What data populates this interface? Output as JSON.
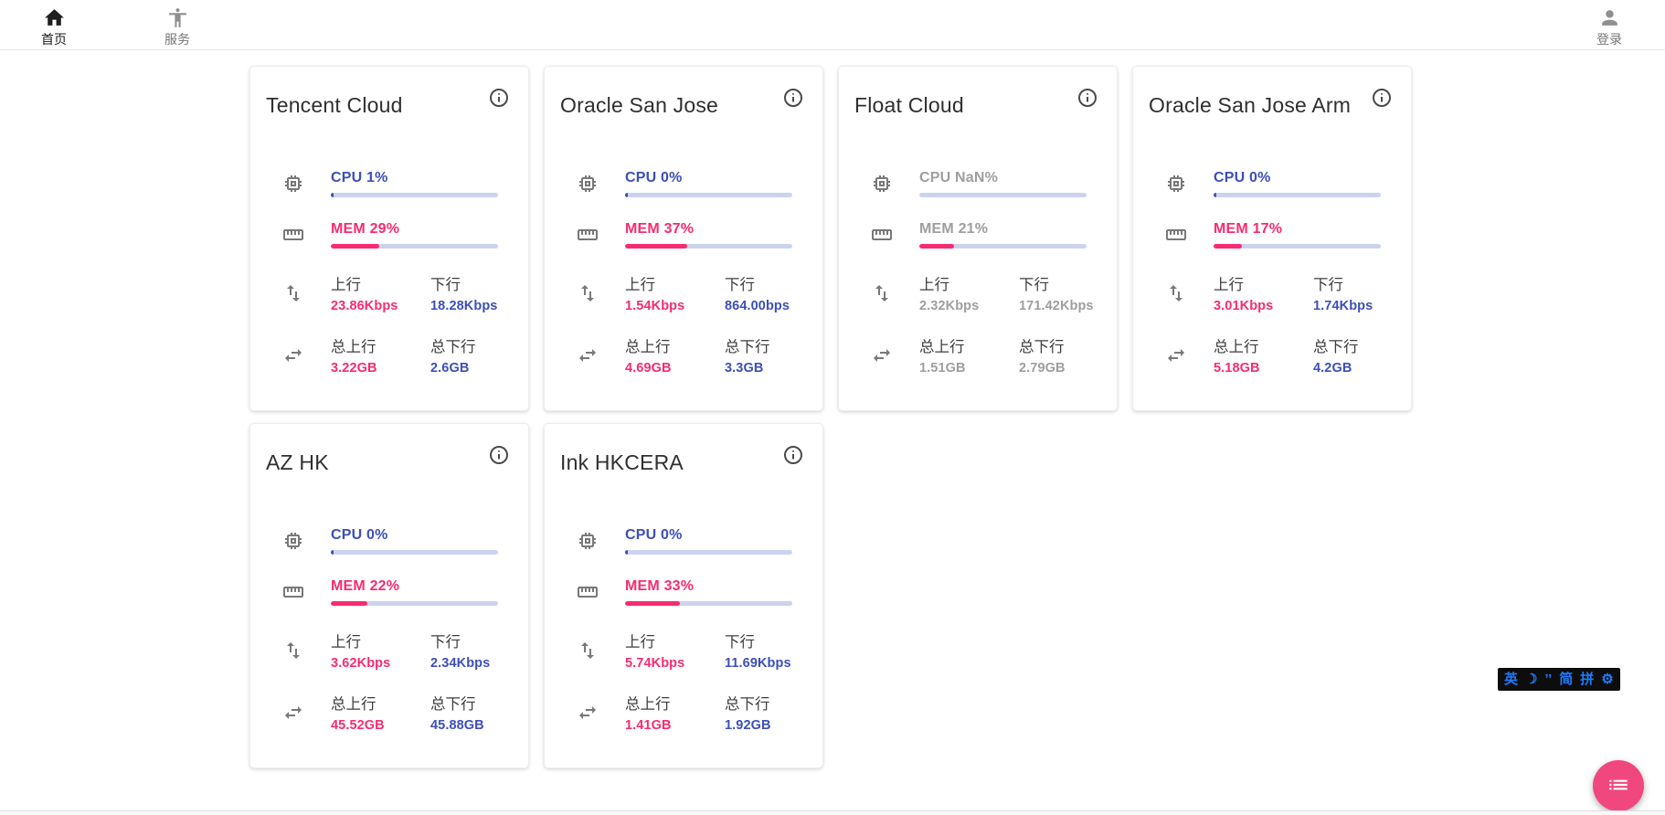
{
  "nav": {
    "home_label": "首页",
    "services_label": "服务",
    "login_label": "登录"
  },
  "card_labels": {
    "up": "上行",
    "down": "下行",
    "total_up": "总上行",
    "total_down": "总下行"
  },
  "servers": [
    {
      "name": "Tencent Cloud",
      "cpu_label": "CPU 1%",
      "cpu_pct": 1,
      "cpu_nan": false,
      "mem_label": "MEM 29%",
      "mem_pct": 29,
      "muted": false,
      "up": "23.86Kbps",
      "down": "18.28Kbps",
      "total_up": "3.22GB",
      "total_down": "2.6GB"
    },
    {
      "name": "Oracle San Jose",
      "cpu_label": "CPU 0%",
      "cpu_pct": 0,
      "cpu_nan": false,
      "mem_label": "MEM 37%",
      "mem_pct": 37,
      "muted": false,
      "up": "1.54Kbps",
      "down": "864.00bps",
      "total_up": "4.69GB",
      "total_down": "3.3GB"
    },
    {
      "name": "Float Cloud",
      "cpu_label": "CPU NaN%",
      "cpu_pct": 0,
      "cpu_nan": true,
      "mem_label": "MEM 21%",
      "mem_pct": 21,
      "muted": true,
      "up": "2.32Kbps",
      "down": "171.42Kbps",
      "total_up": "1.51GB",
      "total_down": "2.79GB"
    },
    {
      "name": "Oracle San Jose Arm",
      "cpu_label": "CPU 0%",
      "cpu_pct": 0,
      "cpu_nan": false,
      "mem_label": "MEM 17%",
      "mem_pct": 17,
      "muted": false,
      "up": "3.01Kbps",
      "down": "1.74Kbps",
      "total_up": "5.18GB",
      "total_down": "4.2GB"
    },
    {
      "name": "AZ HK",
      "cpu_label": "CPU 0%",
      "cpu_pct": 0,
      "cpu_nan": false,
      "mem_label": "MEM 22%",
      "mem_pct": 22,
      "muted": false,
      "up": "3.62Kbps",
      "down": "2.34Kbps",
      "total_up": "45.52GB",
      "total_down": "45.88GB"
    },
    {
      "name": "Ink HKCERA",
      "cpu_label": "CPU 0%",
      "cpu_pct": 0,
      "cpu_nan": false,
      "mem_label": "MEM 33%",
      "mem_pct": 33,
      "muted": false,
      "up": "5.74Kbps",
      "down": "11.69Kbps",
      "total_up": "1.41GB",
      "total_down": "1.92GB"
    }
  ],
  "ime_bar": {
    "items": [
      "英",
      "☽",
      "’’",
      "简",
      "拼",
      "⚙"
    ]
  },
  "colors": {
    "accent_blue": "#3C4FB9",
    "accent_pink": "#F72C6F",
    "muted_gray": "#9E9E9E",
    "bar_track": "#CDD2EF",
    "fab_pink": "#F0487E",
    "ime_blue": "#1E7BFF",
    "ime_bg": "#0d0d0d"
  }
}
